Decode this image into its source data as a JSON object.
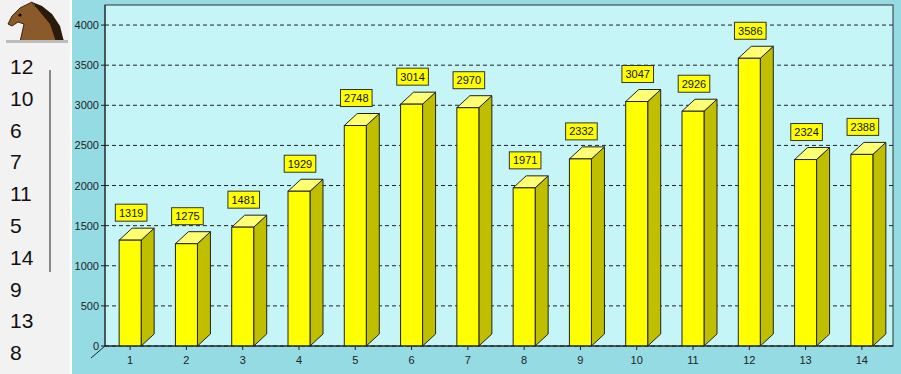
{
  "chart_data": {
    "type": "bar",
    "categories": [
      "1",
      "2",
      "3",
      "4",
      "5",
      "6",
      "7",
      "8",
      "9",
      "10",
      "11",
      "12",
      "13",
      "14"
    ],
    "values": [
      1319,
      1275,
      1481,
      1929,
      2748,
      3014,
      2970,
      1971,
      2332,
      3047,
      2926,
      3586,
      2324,
      2388
    ],
    "color": "#ffff00",
    "ylim": [
      0,
      4250
    ],
    "yticks": [
      0,
      500,
      1000,
      1500,
      2000,
      2500,
      3000,
      3500,
      4000
    ],
    "grid": true,
    "data_labels": true
  },
  "sidebar": {
    "numbers": [
      12,
      10,
      6,
      7,
      11,
      5,
      14,
      9,
      13,
      8
    ]
  }
}
